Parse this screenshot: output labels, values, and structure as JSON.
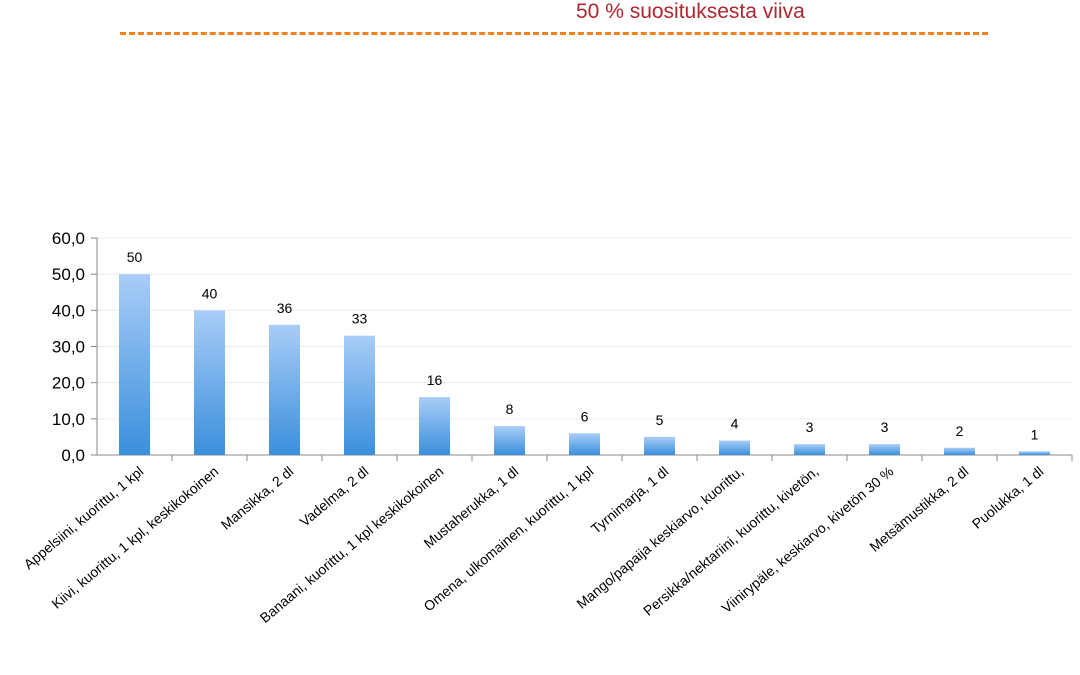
{
  "reference_line": {
    "label": "50 % suosituksesta viiva",
    "color": "#f5821f",
    "label_color": "#b0262f"
  },
  "chart_data": {
    "type": "bar",
    "title": "",
    "xlabel": "",
    "ylabel": "",
    "ylim": [
      0,
      60
    ],
    "y_ticks": [
      "0,0",
      "10,0",
      "20,0",
      "30,0",
      "40,0",
      "50,0",
      "60,0"
    ],
    "grid": true,
    "bar_color_top": "#a9cdf7",
    "bar_color_bottom": "#3a8fdc",
    "categories": [
      "Appelsiini, kuorittu, 1 kpl",
      "Kiivi, kuorittu, 1 kpl, keskikokoinen",
      "Mansikka, 2 dl",
      "Vadelma, 2 dl",
      "Banaani, kuorittu, 1 kpl keskikokoinen",
      "Mustaherukka, 1 dl",
      "Omena, ulkomainen, kuorittu, 1 kpl",
      "Tyrnimarja, 1 dl",
      "Mango/papaija keskiarvo, kuorittu,",
      "Persikka/nektariini, kuorittu, kivetön,",
      "Viinirypäle, keskiarvo, kivetön 30 %",
      "Metsämustikka, 2 dl",
      "Puolukka, 1 dl"
    ],
    "values": [
      50,
      40,
      36,
      33,
      16,
      8,
      6,
      5,
      4,
      3,
      3,
      2,
      1
    ],
    "value_labels": [
      "50",
      "40",
      "36",
      "33",
      "16",
      "8",
      "6",
      "5",
      "4",
      "3",
      "3",
      "2",
      "1"
    ]
  }
}
